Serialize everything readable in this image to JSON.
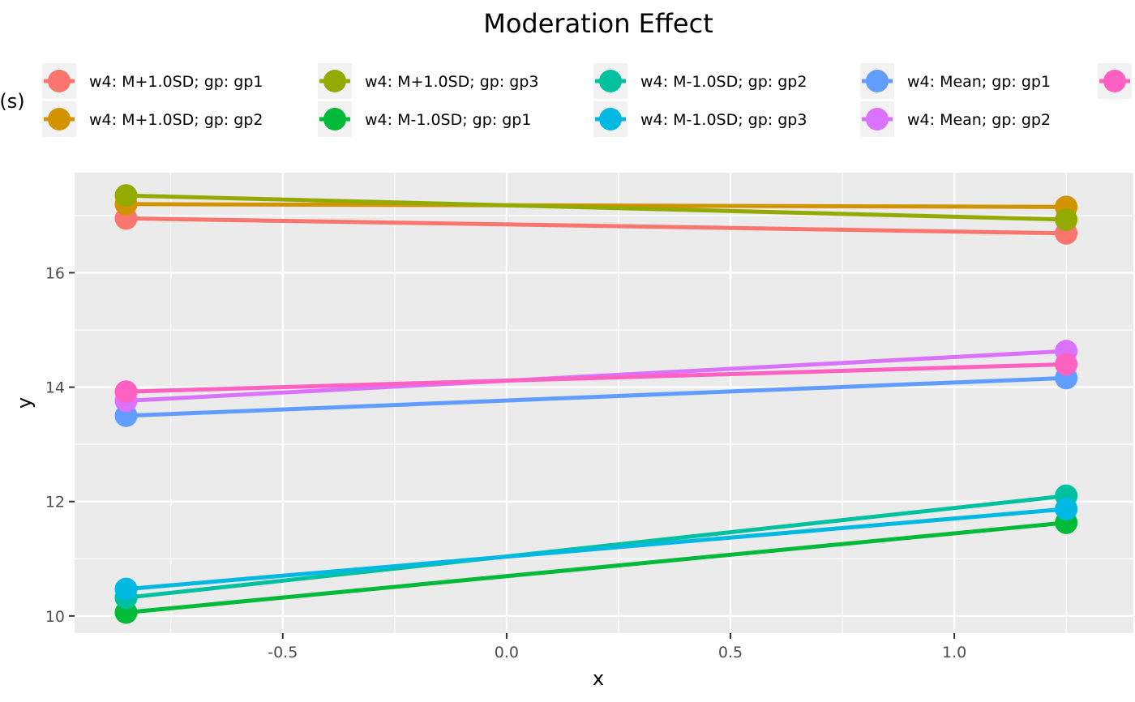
{
  "chart_data": {
    "type": "line",
    "title": "Moderation Effect",
    "xlabel": "x",
    "ylabel": "y",
    "legend_title": "(s)",
    "legend_position": "top",
    "grid": true,
    "xlim": [
      -0.965,
      1.4
    ],
    "ylim": [
      9.7,
      17.75
    ],
    "x_ticks": [
      -0.5,
      0.0,
      0.5,
      1.0
    ],
    "x_tick_labels": [
      "-0.5",
      "0.0",
      "0.5",
      "1.0"
    ],
    "y_ticks": [
      10,
      12,
      14,
      16
    ],
    "y_tick_labels": [
      "10",
      "12",
      "14",
      "16"
    ],
    "x": [
      -0.85,
      1.25
    ],
    "series": [
      {
        "name": "w4: M+1.0SD; gp: gp1",
        "color": "#F8766D",
        "values": [
          16.95,
          16.69
        ]
      },
      {
        "name": "w4: M+1.0SD; gp: gp2",
        "color": "#D39200",
        "values": [
          17.2,
          17.15
        ]
      },
      {
        "name": "w4: M+1.0SD; gp: gp3",
        "color": "#93AA00",
        "values": [
          17.35,
          16.93
        ]
      },
      {
        "name": "w4: M-1.0SD; gp: gp1",
        "color": "#00BA38",
        "values": [
          10.06,
          11.63
        ]
      },
      {
        "name": "w4: M-1.0SD; gp: gp2",
        "color": "#00C19F",
        "values": [
          10.32,
          12.1
        ]
      },
      {
        "name": "w4: M-1.0SD; gp: gp3",
        "color": "#00B9E3",
        "values": [
          10.47,
          11.87
        ]
      },
      {
        "name": "w4: Mean; gp: gp1",
        "color": "#619CFF",
        "values": [
          13.5,
          14.16
        ]
      },
      {
        "name": "w4: Mean; gp: gp2",
        "color": "#DB72FB",
        "values": [
          13.76,
          14.63
        ]
      },
      {
        "name": "",
        "color": "#FF61C3",
        "values": [
          13.92,
          14.4
        ]
      }
    ]
  }
}
